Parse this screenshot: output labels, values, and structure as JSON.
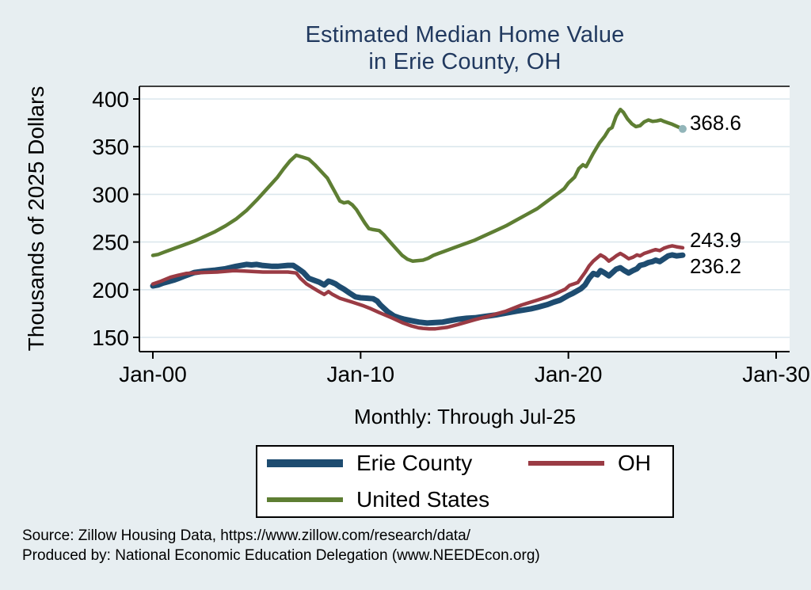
{
  "title": {
    "line1": "Estimated Median Home Value",
    "line2": "in Erie County, OH"
  },
  "subtitle": "Monthly: Through Jul-25",
  "footer": {
    "line1": "Source: Zillow Housing Data, https://www.zillow.com/research/data/",
    "line2": "Produced by: National Economic Education Delegation (www.NEEDEcon.org)"
  },
  "colors": {
    "background": "#e7eef1",
    "plot_background": "#ffffff",
    "title": "#21395f",
    "gridline": "#dbe7ed",
    "axis": "#000000",
    "erie_blue": "#1e4c70",
    "oh_red": "#9a3b44",
    "us_green": "#5e7e33",
    "end_dot": "#92b5b9"
  },
  "chart_data": {
    "type": "line",
    "title": "Estimated Median Home Value in Erie County, OH",
    "xlabel": "Monthly: Through Jul-25",
    "ylabel": "Thousands of 2025 Dollars",
    "xlim": [
      2000,
      2030
    ],
    "ylim": [
      150,
      400
    ],
    "grid": "horizontal",
    "legend_position": "bottom",
    "y_ticks": [
      150,
      200,
      250,
      300,
      350,
      400
    ],
    "x_ticks": [
      {
        "year": 2000,
        "label": "Jan-00"
      },
      {
        "year": 2010,
        "label": "Jan-10"
      },
      {
        "year": 2020,
        "label": "Jan-20"
      },
      {
        "year": 2030,
        "label": "Jan-30"
      }
    ],
    "series": [
      {
        "name": "Erie County",
        "color": "#1e4c70",
        "width": 7,
        "end_value": 236.2,
        "end_label": "236.2",
        "label_dy": 14,
        "points": [
          [
            2000.0,
            204
          ],
          [
            2000.25,
            205
          ],
          [
            2000.5,
            207
          ],
          [
            2000.75,
            208.5
          ],
          [
            2001.0,
            210
          ],
          [
            2001.25,
            212
          ],
          [
            2001.5,
            214
          ],
          [
            2001.75,
            216
          ],
          [
            2002.0,
            218
          ],
          [
            2002.5,
            219.5
          ],
          [
            2003.0,
            220.5
          ],
          [
            2003.5,
            222
          ],
          [
            2004.0,
            224.5
          ],
          [
            2004.5,
            226.5
          ],
          [
            2004.75,
            226
          ],
          [
            2005.0,
            226.5
          ],
          [
            2005.25,
            225.5
          ],
          [
            2005.5,
            225
          ],
          [
            2005.75,
            224.5
          ],
          [
            2006.0,
            224.5
          ],
          [
            2006.25,
            225
          ],
          [
            2006.5,
            225.5
          ],
          [
            2006.75,
            225.5
          ],
          [
            2007.0,
            222
          ],
          [
            2007.25,
            218
          ],
          [
            2007.5,
            212
          ],
          [
            2007.75,
            210
          ],
          [
            2008.0,
            208
          ],
          [
            2008.25,
            205
          ],
          [
            2008.45,
            209
          ],
          [
            2008.6,
            208
          ],
          [
            2008.8,
            206
          ],
          [
            2009.0,
            203
          ],
          [
            2009.2,
            200.5
          ],
          [
            2009.5,
            196
          ],
          [
            2009.75,
            192.5
          ],
          [
            2010.0,
            191.5
          ],
          [
            2010.35,
            191
          ],
          [
            2010.6,
            190.5
          ],
          [
            2010.8,
            188
          ],
          [
            2010.95,
            184
          ],
          [
            2011.1,
            181
          ],
          [
            2011.3,
            177
          ],
          [
            2011.6,
            172.5
          ],
          [
            2011.85,
            170.5
          ],
          [
            2012.1,
            169
          ],
          [
            2012.45,
            167.5
          ],
          [
            2012.8,
            166
          ],
          [
            2013.2,
            165
          ],
          [
            2013.6,
            165.5
          ],
          [
            2013.95,
            166
          ],
          [
            2014.3,
            167.5
          ],
          [
            2014.7,
            169
          ],
          [
            2015.1,
            170
          ],
          [
            2015.5,
            170.5
          ],
          [
            2016.0,
            172
          ],
          [
            2016.5,
            173.5
          ],
          [
            2017.0,
            175.5
          ],
          [
            2017.5,
            177.5
          ],
          [
            2017.8,
            178.5
          ],
          [
            2018.2,
            180
          ],
          [
            2018.5,
            181.5
          ],
          [
            2019.0,
            184.5
          ],
          [
            2019.3,
            187
          ],
          [
            2019.6,
            189
          ],
          [
            2020.0,
            194
          ],
          [
            2020.2,
            196
          ],
          [
            2020.4,
            198.5
          ],
          [
            2020.6,
            201
          ],
          [
            2020.8,
            205
          ],
          [
            2021.0,
            212
          ],
          [
            2021.2,
            217
          ],
          [
            2021.4,
            215.5
          ],
          [
            2021.55,
            220
          ],
          [
            2021.75,
            217.5
          ],
          [
            2021.95,
            214.5
          ],
          [
            2022.1,
            217.5
          ],
          [
            2022.3,
            221.5
          ],
          [
            2022.5,
            223
          ],
          [
            2022.7,
            220
          ],
          [
            2022.9,
            217.5
          ],
          [
            2023.1,
            220
          ],
          [
            2023.3,
            222
          ],
          [
            2023.45,
            225.5
          ],
          [
            2023.65,
            226.5
          ],
          [
            2023.85,
            228.5
          ],
          [
            2024.05,
            229.5
          ],
          [
            2024.2,
            231
          ],
          [
            2024.4,
            229.5
          ],
          [
            2024.6,
            232.5
          ],
          [
            2024.8,
            235.5
          ],
          [
            2025.0,
            236.5
          ],
          [
            2025.2,
            235.5
          ],
          [
            2025.5,
            236.2
          ]
        ]
      },
      {
        "name": "OH",
        "color": "#9a3b44",
        "width": 4.5,
        "end_value": 243.9,
        "end_label": "243.9",
        "label_dy": -10,
        "points": [
          [
            2000.0,
            206
          ],
          [
            2000.4,
            209
          ],
          [
            2000.85,
            213
          ],
          [
            2001.2,
            215
          ],
          [
            2001.6,
            217
          ],
          [
            2002.0,
            217.5
          ],
          [
            2002.4,
            218
          ],
          [
            2003.1,
            218.5
          ],
          [
            2003.9,
            220
          ],
          [
            2004.4,
            219.5
          ],
          [
            2004.85,
            219
          ],
          [
            2005.3,
            218.5
          ],
          [
            2005.6,
            218.5
          ],
          [
            2006.0,
            218.5
          ],
          [
            2006.5,
            218.5
          ],
          [
            2006.9,
            217.5
          ],
          [
            2007.1,
            212
          ],
          [
            2007.4,
            206
          ],
          [
            2007.7,
            202
          ],
          [
            2008.0,
            198
          ],
          [
            2008.25,
            195
          ],
          [
            2008.45,
            198
          ],
          [
            2008.65,
            195
          ],
          [
            2009.0,
            191
          ],
          [
            2009.6,
            187
          ],
          [
            2010.15,
            183
          ],
          [
            2010.5,
            180
          ],
          [
            2010.9,
            176
          ],
          [
            2011.5,
            170.5
          ],
          [
            2012.05,
            165
          ],
          [
            2012.45,
            162
          ],
          [
            2012.8,
            160
          ],
          [
            2013.0,
            159.5
          ],
          [
            2013.3,
            159
          ],
          [
            2013.6,
            159
          ],
          [
            2014.15,
            160.5
          ],
          [
            2014.7,
            163.5
          ],
          [
            2015.1,
            166
          ],
          [
            2015.5,
            168.5
          ],
          [
            2016.2,
            172.5
          ],
          [
            2017.0,
            177.5
          ],
          [
            2017.75,
            184
          ],
          [
            2018.5,
            189
          ],
          [
            2019.0,
            192.5
          ],
          [
            2019.3,
            195
          ],
          [
            2019.85,
            200.5
          ],
          [
            2020.05,
            204.5
          ],
          [
            2020.25,
            206
          ],
          [
            2020.45,
            207.5
          ],
          [
            2020.8,
            218
          ],
          [
            2021.0,
            225
          ],
          [
            2021.2,
            230
          ],
          [
            2021.55,
            236.5
          ],
          [
            2021.75,
            234
          ],
          [
            2021.95,
            230
          ],
          [
            2022.15,
            233
          ],
          [
            2022.3,
            235.5
          ],
          [
            2022.5,
            238
          ],
          [
            2022.7,
            235.5
          ],
          [
            2022.9,
            232.5
          ],
          [
            2023.1,
            234
          ],
          [
            2023.3,
            236.5
          ],
          [
            2023.45,
            235.5
          ],
          [
            2023.65,
            238
          ],
          [
            2023.85,
            239.5
          ],
          [
            2024.05,
            241
          ],
          [
            2024.2,
            242
          ],
          [
            2024.4,
            241
          ],
          [
            2024.6,
            243.5
          ],
          [
            2024.8,
            245
          ],
          [
            2025.0,
            246
          ],
          [
            2025.2,
            245
          ],
          [
            2025.5,
            243.9
          ]
        ]
      },
      {
        "name": "United States",
        "color": "#5e7e33",
        "width": 4.5,
        "end_value": 368.6,
        "end_label": "368.6",
        "label_dy": -8,
        "end_dot": "#92b5b9",
        "points": [
          [
            2000.0,
            236
          ],
          [
            2000.25,
            237
          ],
          [
            2000.5,
            239
          ],
          [
            2000.75,
            241
          ],
          [
            2001.0,
            243
          ],
          [
            2001.5,
            247
          ],
          [
            2002.0,
            251
          ],
          [
            2002.5,
            256
          ],
          [
            2003.0,
            261
          ],
          [
            2003.5,
            267
          ],
          [
            2004.0,
            274
          ],
          [
            2004.5,
            283
          ],
          [
            2005.0,
            294
          ],
          [
            2005.5,
            306
          ],
          [
            2006.0,
            318
          ],
          [
            2006.3,
            327
          ],
          [
            2006.6,
            335
          ],
          [
            2006.9,
            341
          ],
          [
            2007.2,
            339
          ],
          [
            2007.5,
            337
          ],
          [
            2007.8,
            331
          ],
          [
            2008.1,
            324
          ],
          [
            2008.4,
            317
          ],
          [
            2008.6,
            309
          ],
          [
            2008.8,
            301
          ],
          [
            2009.0,
            293
          ],
          [
            2009.2,
            291
          ],
          [
            2009.4,
            292
          ],
          [
            2009.6,
            289
          ],
          [
            2009.8,
            284
          ],
          [
            2010.0,
            277
          ],
          [
            2010.2,
            270
          ],
          [
            2010.4,
            264
          ],
          [
            2010.6,
            263
          ],
          [
            2010.9,
            262
          ],
          [
            2011.1,
            258
          ],
          [
            2011.3,
            253
          ],
          [
            2011.5,
            248
          ],
          [
            2011.75,
            242
          ],
          [
            2012.0,
            236
          ],
          [
            2012.25,
            232
          ],
          [
            2012.5,
            230
          ],
          [
            2012.75,
            230.5
          ],
          [
            2013.0,
            231
          ],
          [
            2013.25,
            233
          ],
          [
            2013.5,
            236
          ],
          [
            2013.75,
            238
          ],
          [
            2014.0,
            240
          ],
          [
            2014.5,
            244
          ],
          [
            2015.0,
            248
          ],
          [
            2015.5,
            252
          ],
          [
            2016.0,
            257
          ],
          [
            2016.5,
            262
          ],
          [
            2017.0,
            267
          ],
          [
            2017.5,
            273
          ],
          [
            2018.0,
            279
          ],
          [
            2018.5,
            285
          ],
          [
            2019.0,
            293
          ],
          [
            2019.5,
            301
          ],
          [
            2019.8,
            306
          ],
          [
            2020.0,
            312
          ],
          [
            2020.3,
            318
          ],
          [
            2020.5,
            327
          ],
          [
            2020.7,
            331
          ],
          [
            2020.85,
            329
          ],
          [
            2021.0,
            335
          ],
          [
            2021.2,
            343
          ],
          [
            2021.5,
            354
          ],
          [
            2021.75,
            361
          ],
          [
            2021.95,
            368
          ],
          [
            2022.1,
            370
          ],
          [
            2022.3,
            382
          ],
          [
            2022.5,
            389
          ],
          [
            2022.65,
            386
          ],
          [
            2022.85,
            379
          ],
          [
            2023.05,
            374
          ],
          [
            2023.25,
            371
          ],
          [
            2023.45,
            372
          ],
          [
            2023.65,
            376
          ],
          [
            2023.85,
            378
          ],
          [
            2024.05,
            376.5
          ],
          [
            2024.25,
            377
          ],
          [
            2024.45,
            378
          ],
          [
            2024.6,
            376.5
          ],
          [
            2024.8,
            375
          ],
          [
            2025.0,
            373.5
          ],
          [
            2025.2,
            371.5
          ],
          [
            2025.35,
            370
          ],
          [
            2025.5,
            368.6
          ]
        ]
      }
    ]
  }
}
